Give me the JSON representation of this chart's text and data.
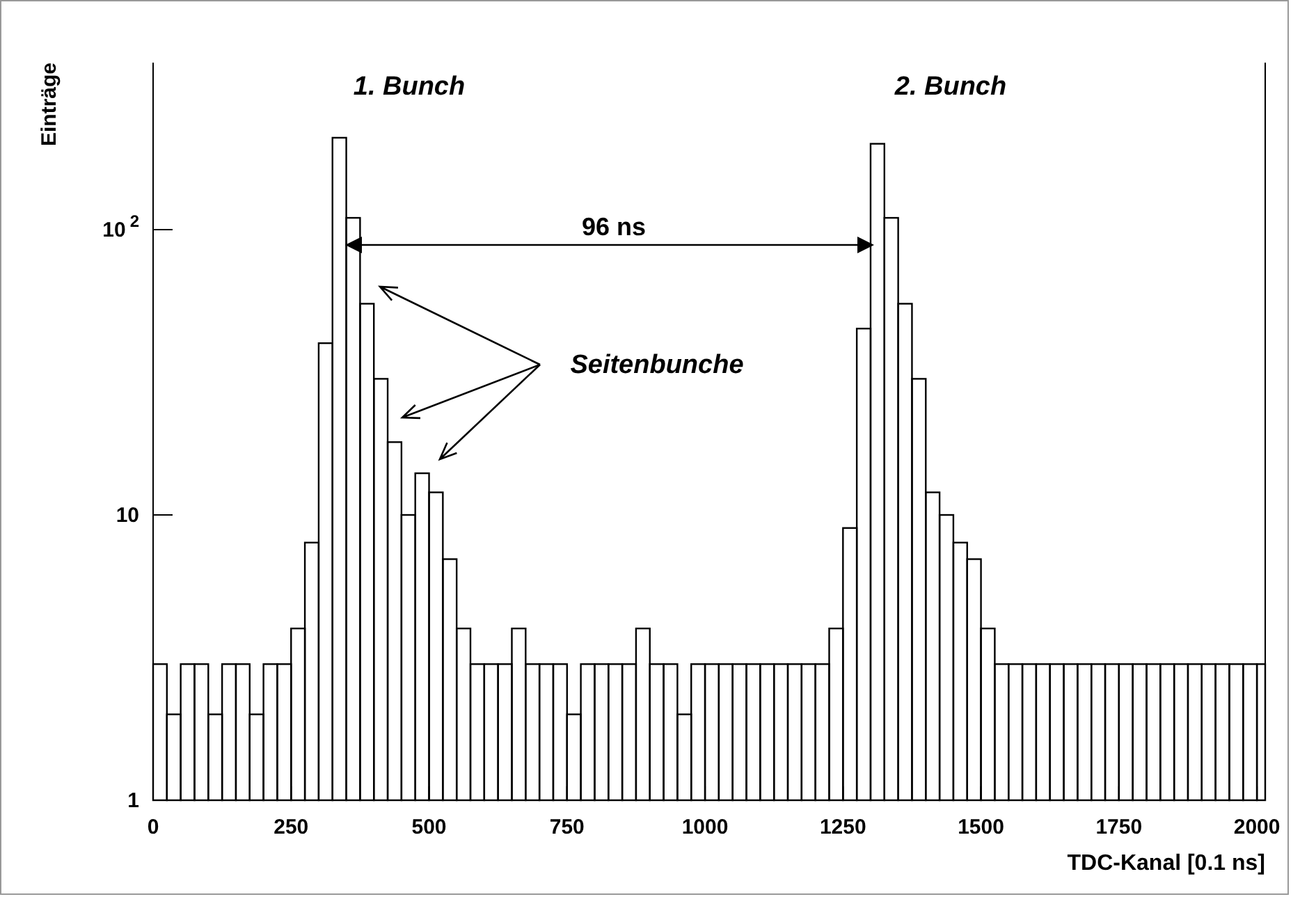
{
  "chart_data": {
    "type": "histogram",
    "xlabel": "TDC-Kanal [0.1 ns]",
    "ylabel": "Einträge",
    "color": "#000000",
    "bins": [
      0,
      25,
      50,
      75,
      100,
      125,
      150,
      175,
      200,
      225,
      250,
      275,
      300,
      325,
      350,
      375,
      400,
      425,
      450,
      475,
      500,
      525,
      550,
      575,
      600,
      625,
      650,
      675,
      700,
      725,
      750,
      775,
      800,
      825,
      850,
      875,
      900,
      925,
      950,
      975,
      1000,
      1025,
      1050,
      1075,
      1100,
      1125,
      1150,
      1175,
      1200,
      1225,
      1250,
      1275,
      1300,
      1325,
      1350,
      1375,
      1400,
      1425,
      1450,
      1475,
      1500,
      1525,
      1550,
      1575,
      1600,
      1625,
      1650,
      1675,
      1700,
      1725,
      1750,
      1775,
      1800,
      1825,
      1850,
      1875,
      1900,
      1925,
      1950,
      1975,
      2000,
      2015
    ],
    "values": [
      3,
      2,
      3,
      3,
      2,
      3,
      3,
      2,
      3,
      3,
      4,
      8,
      40,
      210,
      110,
      55,
      30,
      18,
      10,
      14,
      12,
      7,
      4,
      3,
      3,
      3,
      4,
      3,
      3,
      3,
      2,
      3,
      3,
      3,
      3,
      4,
      3,
      3,
      2,
      3,
      3,
      3,
      3,
      3,
      3,
      3,
      3,
      3,
      3,
      4,
      9,
      45,
      200,
      110,
      55,
      30,
      12,
      10,
      8,
      7,
      4,
      3,
      3,
      3,
      3,
      3,
      3,
      3,
      3,
      3,
      3,
      3,
      3,
      3,
      3,
      3,
      3,
      3,
      3,
      3,
      3
    ],
    "log": "y",
    "xlim": [
      0,
      2015
    ],
    "ylim": [
      1,
      385
    ],
    "xticks": [
      0,
      250,
      500,
      750,
      1000,
      1250,
      1500,
      1750,
      2000
    ],
    "yticks": [
      1,
      10,
      {
        "value": 100,
        "label": "10$^{2}$"
      }
    ],
    "grid": false,
    "annotations": [
      "1. Bunch",
      "2. Bunch",
      "96 ns",
      "Seitenbunche"
    ]
  }
}
